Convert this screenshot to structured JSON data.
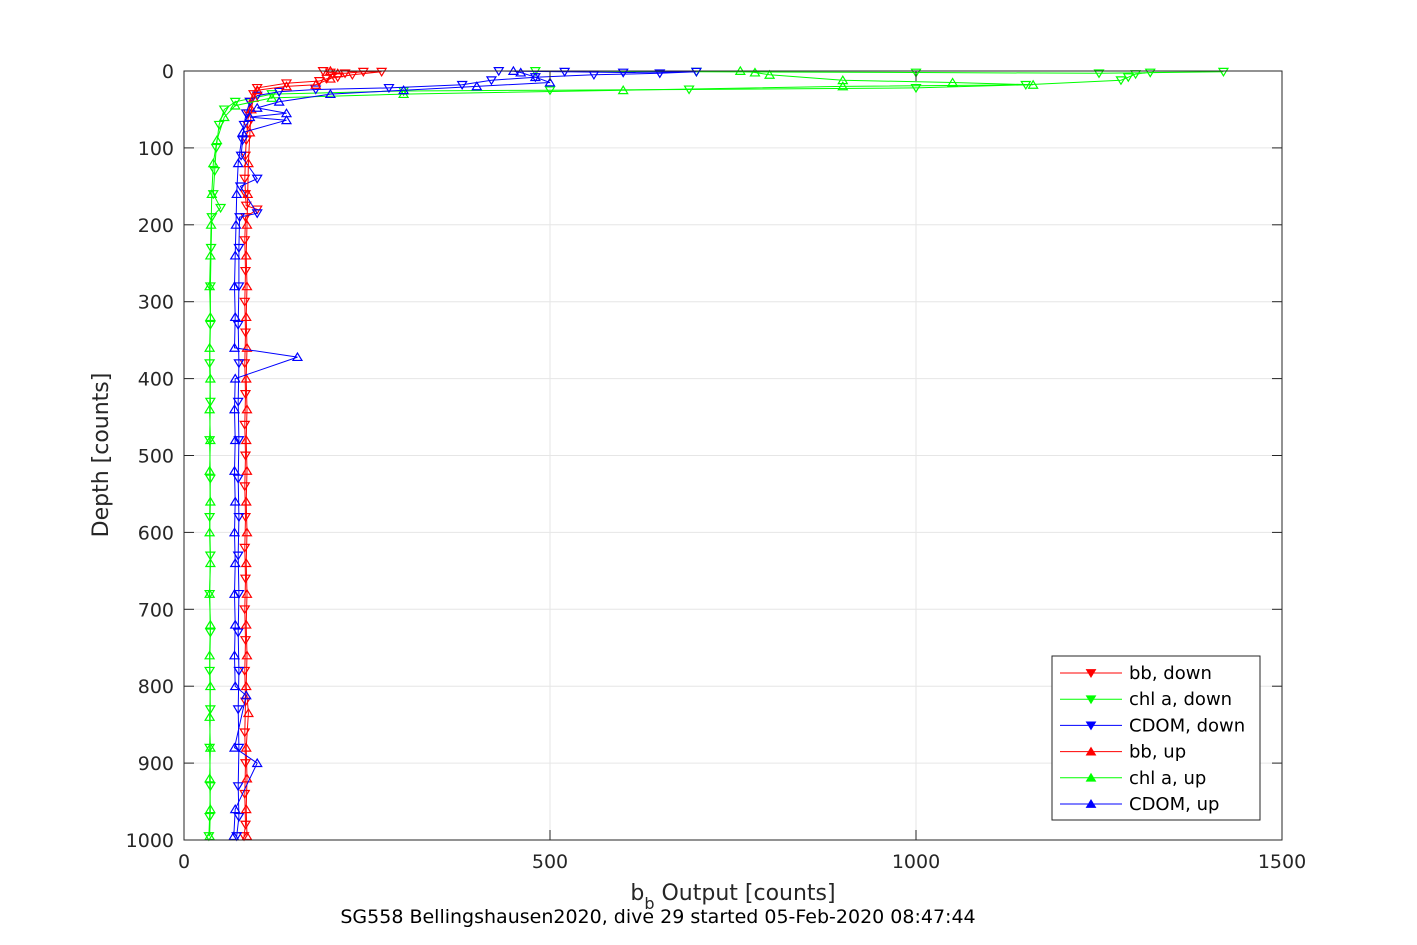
{
  "chart_data": {
    "type": "line",
    "caption": "SG558 Bellingshausen2020, dive 29 started 05-Feb-2020 08:47:44",
    "xlabel_main": "b",
    "xlabel_sub": "b",
    "xlabel_rest": " Output [counts]",
    "ylabel": "Depth [counts]",
    "xlim": [
      0,
      1500
    ],
    "ylim": [
      0,
      1000
    ],
    "y_reversed": true,
    "xticks": [
      0,
      500,
      1000,
      1500
    ],
    "yticks": [
      0,
      100,
      200,
      300,
      400,
      500,
      600,
      700,
      800,
      900,
      1000
    ],
    "grid": true,
    "legend_position": "bottom-right",
    "series": [
      {
        "name": "bb, down",
        "color": "#ff0000",
        "marker": "triangle-down",
        "points": [
          [
            190,
            0
          ],
          [
            200,
            2
          ],
          [
            220,
            3
          ],
          [
            245,
            1
          ],
          [
            270,
            1
          ],
          [
            230,
            5
          ],
          [
            210,
            8
          ],
          [
            195,
            10
          ],
          [
            185,
            13
          ],
          [
            140,
            16
          ],
          [
            100,
            22
          ],
          [
            95,
            30
          ],
          [
            90,
            40
          ],
          [
            88,
            55
          ],
          [
            87,
            70
          ],
          [
            85,
            90
          ],
          [
            84,
            110
          ],
          [
            83,
            140
          ],
          [
            84,
            160
          ],
          [
            85,
            175
          ],
          [
            100,
            180
          ],
          [
            84,
            190
          ],
          [
            83,
            220
          ],
          [
            84,
            260
          ],
          [
            83,
            300
          ],
          [
            84,
            340
          ],
          [
            83,
            380
          ],
          [
            84,
            420
          ],
          [
            83,
            460
          ],
          [
            84,
            500
          ],
          [
            83,
            540
          ],
          [
            84,
            580
          ],
          [
            83,
            620
          ],
          [
            84,
            660
          ],
          [
            83,
            700
          ],
          [
            84,
            740
          ],
          [
            83,
            780
          ],
          [
            84,
            820
          ],
          [
            83,
            860
          ],
          [
            84,
            900
          ],
          [
            83,
            940
          ],
          [
            84,
            980
          ],
          [
            82,
            995
          ]
        ]
      },
      {
        "name": "chl a, down",
        "color": "#00ff00",
        "marker": "triangle-down",
        "points": [
          [
            480,
            0
          ],
          [
            700,
            1
          ],
          [
            1000,
            2
          ],
          [
            1250,
            3
          ],
          [
            1420,
            1
          ],
          [
            1320,
            2
          ],
          [
            1300,
            4
          ],
          [
            1290,
            8
          ],
          [
            1280,
            12
          ],
          [
            1150,
            18
          ],
          [
            1000,
            22
          ],
          [
            690,
            24
          ],
          [
            500,
            25
          ],
          [
            300,
            26
          ],
          [
            120,
            30
          ],
          [
            70,
            40
          ],
          [
            55,
            50
          ],
          [
            48,
            70
          ],
          [
            44,
            100
          ],
          [
            42,
            130
          ],
          [
            40,
            160
          ],
          [
            50,
            178
          ],
          [
            38,
            190
          ],
          [
            37,
            230
          ],
          [
            36,
            280
          ],
          [
            36,
            330
          ],
          [
            35,
            380
          ],
          [
            36,
            430
          ],
          [
            35,
            480
          ],
          [
            36,
            530
          ],
          [
            35,
            580
          ],
          [
            36,
            630
          ],
          [
            35,
            680
          ],
          [
            36,
            730
          ],
          [
            35,
            780
          ],
          [
            36,
            830
          ],
          [
            35,
            880
          ],
          [
            36,
            930
          ],
          [
            35,
            970
          ],
          [
            34,
            995
          ]
        ]
      },
      {
        "name": "CDOM, down",
        "color": "#0000ff",
        "marker": "triangle-down",
        "points": [
          [
            430,
            0
          ],
          [
            520,
            1
          ],
          [
            600,
            2
          ],
          [
            700,
            1
          ],
          [
            650,
            3
          ],
          [
            560,
            5
          ],
          [
            480,
            8
          ],
          [
            420,
            12
          ],
          [
            380,
            18
          ],
          [
            280,
            22
          ],
          [
            180,
            24
          ],
          [
            130,
            27
          ],
          [
            100,
            32
          ],
          [
            90,
            40
          ],
          [
            85,
            55
          ],
          [
            82,
            70
          ],
          [
            80,
            90
          ],
          [
            78,
            110
          ],
          [
            100,
            140
          ],
          [
            77,
            150
          ],
          [
            100,
            185
          ],
          [
            76,
            190
          ],
          [
            75,
            230
          ],
          [
            75,
            280
          ],
          [
            74,
            330
          ],
          [
            75,
            380
          ],
          [
            74,
            430
          ],
          [
            75,
            480
          ],
          [
            74,
            530
          ],
          [
            75,
            580
          ],
          [
            74,
            630
          ],
          [
            75,
            680
          ],
          [
            74,
            730
          ],
          [
            75,
            780
          ],
          [
            74,
            830
          ],
          [
            75,
            880
          ],
          [
            74,
            930
          ],
          [
            75,
            970
          ],
          [
            72,
            995
          ]
        ]
      },
      {
        "name": "bb, up",
        "color": "#ff0000",
        "marker": "triangle-up",
        "points": [
          [
            86,
            995
          ],
          [
            85,
            960
          ],
          [
            86,
            920
          ],
          [
            85,
            880
          ],
          [
            88,
            835
          ],
          [
            85,
            800
          ],
          [
            86,
            760
          ],
          [
            85,
            720
          ],
          [
            86,
            680
          ],
          [
            85,
            640
          ],
          [
            86,
            600
          ],
          [
            85,
            560
          ],
          [
            86,
            520
          ],
          [
            85,
            480
          ],
          [
            86,
            440
          ],
          [
            85,
            400
          ],
          [
            86,
            360
          ],
          [
            85,
            320
          ],
          [
            86,
            280
          ],
          [
            85,
            240
          ],
          [
            86,
            200
          ],
          [
            87,
            160
          ],
          [
            88,
            120
          ],
          [
            90,
            80
          ],
          [
            92,
            50
          ],
          [
            95,
            35
          ],
          [
            100,
            25
          ],
          [
            140,
            20
          ],
          [
            180,
            18
          ],
          [
            200,
            10
          ],
          [
            210,
            3
          ],
          [
            200,
            0
          ]
        ]
      },
      {
        "name": "chl a, up",
        "color": "#00ff00",
        "marker": "triangle-up",
        "points": [
          [
            35,
            995
          ],
          [
            36,
            960
          ],
          [
            35,
            920
          ],
          [
            36,
            880
          ],
          [
            35,
            840
          ],
          [
            36,
            800
          ],
          [
            35,
            760
          ],
          [
            36,
            720
          ],
          [
            35,
            680
          ],
          [
            36,
            640
          ],
          [
            35,
            600
          ],
          [
            36,
            560
          ],
          [
            35,
            520
          ],
          [
            36,
            480
          ],
          [
            35,
            440
          ],
          [
            36,
            400
          ],
          [
            35,
            360
          ],
          [
            36,
            320
          ],
          [
            35,
            280
          ],
          [
            36,
            240
          ],
          [
            37,
            200
          ],
          [
            38,
            160
          ],
          [
            40,
            120
          ],
          [
            45,
            90
          ],
          [
            55,
            60
          ],
          [
            70,
            45
          ],
          [
            120,
            35
          ],
          [
            300,
            30
          ],
          [
            600,
            25
          ],
          [
            900,
            20
          ],
          [
            1160,
            18
          ],
          [
            1050,
            15
          ],
          [
            900,
            12
          ],
          [
            800,
            5
          ],
          [
            780,
            2
          ],
          [
            760,
            0
          ]
        ]
      },
      {
        "name": "CDOM, up",
        "color": "#0000ff",
        "marker": "triangle-up",
        "points": [
          [
            68,
            995
          ],
          [
            70,
            960
          ],
          [
            100,
            900
          ],
          [
            69,
            880
          ],
          [
            85,
            812
          ],
          [
            70,
            800
          ],
          [
            69,
            760
          ],
          [
            70,
            720
          ],
          [
            69,
            680
          ],
          [
            70,
            640
          ],
          [
            69,
            600
          ],
          [
            70,
            560
          ],
          [
            69,
            520
          ],
          [
            70,
            480
          ],
          [
            69,
            440
          ],
          [
            70,
            400
          ],
          [
            155,
            372
          ],
          [
            69,
            360
          ],
          [
            70,
            320
          ],
          [
            69,
            280
          ],
          [
            70,
            240
          ],
          [
            71,
            200
          ],
          [
            72,
            160
          ],
          [
            74,
            120
          ],
          [
            80,
            80
          ],
          [
            140,
            64
          ],
          [
            90,
            60
          ],
          [
            140,
            55
          ],
          [
            100,
            48
          ],
          [
            130,
            40
          ],
          [
            200,
            30
          ],
          [
            300,
            25
          ],
          [
            400,
            20
          ],
          [
            500,
            15
          ],
          [
            480,
            8
          ],
          [
            460,
            2
          ],
          [
            450,
            0
          ]
        ]
      }
    ]
  }
}
